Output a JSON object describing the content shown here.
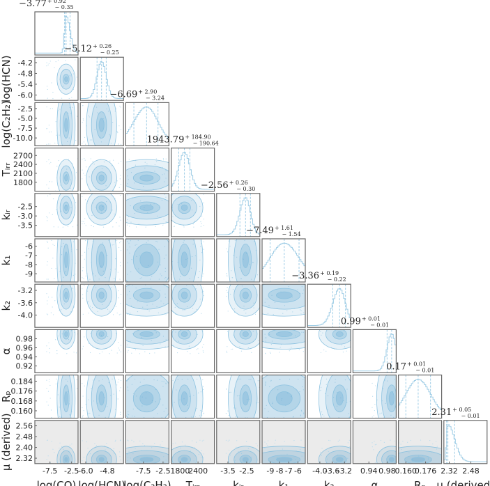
{
  "chart_data": {
    "type": "corner",
    "color": "#5ba3cf",
    "parameters": [
      {
        "label": "log(CO)",
        "median": -3.77,
        "plus": 0.92,
        "minus": 0.35,
        "title_median": "−3.77",
        "title_plus": "+ 0.92",
        "title_minus": "− 0.35",
        "range": [
          -11,
          -1
        ],
        "ticks": [
          -7.5,
          -2.5
        ],
        "tick_labels": [
          "-7.5",
          "-2.5"
        ]
      },
      {
        "label": "log(HCN)",
        "median": -5.12,
        "plus": 0.26,
        "minus": 0.25,
        "title_median": "−5.12",
        "title_plus": "+ 0.26",
        "title_minus": "− 0.25",
        "range": [
          -6.3,
          -3.9
        ],
        "ticks": [
          -6.0,
          -4.8
        ],
        "tick_labels": [
          "-6.0",
          "-4.8"
        ],
        "y_ticks": [
          -4.2,
          -4.8,
          -5.4,
          -6.0
        ],
        "y_tick_labels": [
          "-4.2",
          "-4.8",
          "-5.4",
          "-6.0"
        ]
      },
      {
        "label": "log(C₂H₂)",
        "median": -6.69,
        "plus": 2.9,
        "minus": 3.24,
        "title_median": "−6.69",
        "title_plus": "+ 2.90",
        "title_minus": "− 3.24",
        "range": [
          -12,
          -1
        ],
        "ticks": [
          -7.5,
          -2.5
        ],
        "tick_labels": [
          "-7.5",
          "-2.5"
        ],
        "y_ticks": [
          -2.5,
          -5.0,
          -7.5,
          -10.0
        ],
        "y_tick_labels": [
          "-2.5",
          "-5.0",
          "-7.5",
          "-10.0"
        ]
      },
      {
        "label": "Tᵢᵣᵣ",
        "median": 1943.79,
        "plus": 184.9,
        "minus": 190.64,
        "title_median": "1943.79",
        "title_plus": "+ 184.90",
        "title_minus": "− 190.64",
        "range": [
          1500,
          2950
        ],
        "ticks": [
          1800,
          2400
        ],
        "tick_labels": [
          "1800",
          "2400"
        ],
        "y_ticks": [
          2700,
          2400,
          2100,
          1800
        ],
        "y_tick_labels": [
          "2700",
          "2400",
          "2100",
          "1800"
        ]
      },
      {
        "label": "kᵢᵣ",
        "median": -2.56,
        "plus": 0.26,
        "minus": 0.3,
        "title_median": "−2.56",
        "title_plus": "+ 0.26",
        "title_minus": "− 0.30",
        "range": [
          -4.1,
          -1.8
        ],
        "ticks": [
          -3.5,
          -2.5
        ],
        "tick_labels": [
          "-3.5",
          "-2.5"
        ],
        "y_ticks": [
          -2.5,
          -3.0,
          -3.5
        ],
        "y_tick_labels": [
          "-2.5",
          "-3.0",
          "-3.5"
        ]
      },
      {
        "label": "k₁",
        "median": -7.49,
        "plus": 1.61,
        "minus": 1.54,
        "title_median": "−7.49",
        "title_plus": "+ 1.61",
        "title_minus": "− 1.54",
        "range": [
          -9.9,
          -5.2
        ],
        "ticks": [
          -9,
          -8,
          -7,
          -6
        ],
        "tick_labels": [
          "-9",
          "-8",
          "-7",
          "-6"
        ],
        "y_ticks": [
          -6,
          -7,
          -8,
          -9
        ],
        "y_tick_labels": [
          "-6",
          "-7",
          "-8",
          "-9"
        ]
      },
      {
        "label": "k₂",
        "median": -3.36,
        "plus": 0.19,
        "minus": 0.22,
        "title_median": "−3.36",
        "title_plus": "+ 0.19",
        "title_minus": "− 0.22",
        "range": [
          -4.4,
          -3.0
        ],
        "ticks": [
          -4.0,
          -3.6,
          -3.2
        ],
        "tick_labels": [
          "-4.0",
          "-3.6",
          "-3.2"
        ],
        "y_ticks": [
          -3.2,
          -3.6,
          -4.0
        ],
        "y_tick_labels": [
          "-3.2",
          "-3.6",
          "-4.0"
        ]
      },
      {
        "label": "α",
        "median": 0.99,
        "plus": 0.01,
        "minus": 0.01,
        "title_median": "0.99",
        "title_plus": "+ 0.01",
        "title_minus": "− 0.01",
        "range": [
          0.905,
          1.0
        ],
        "ticks": [
          0.94,
          0.98
        ],
        "tick_labels": [
          "0.94",
          "0.98"
        ],
        "y_ticks": [
          0.98,
          0.96,
          0.94,
          0.92
        ],
        "y_tick_labels": [
          "0.98",
          "0.96",
          "0.94",
          "0.92"
        ]
      },
      {
        "label": "Rₚ",
        "median": 0.17,
        "plus": 0.01,
        "minus": 0.01,
        "title_median": "0.17",
        "title_plus": "+ 0.01",
        "title_minus": "− 0.01",
        "range": [
          0.154,
          0.189
        ],
        "ticks": [
          0.16,
          0.176
        ],
        "tick_labels": [
          "0.160",
          "0.176"
        ],
        "y_ticks": [
          0.184,
          0.176,
          0.168,
          0.16
        ],
        "y_tick_labels": [
          "0.184",
          "0.176",
          "0.168",
          "0.160"
        ]
      },
      {
        "label": "μ (derived)",
        "median": 2.31,
        "plus": 0.05,
        "minus": 0.01,
        "title_median": "2.31",
        "title_plus": "+ 0.05",
        "title_minus": "− 0.01",
        "range": [
          2.28,
          2.6
        ],
        "ticks": [
          2.32,
          2.48
        ],
        "tick_labels": [
          "2.32",
          "2.48"
        ],
        "y_ticks": [
          2.56,
          2.48,
          2.4,
          2.32
        ],
        "y_tick_labels": [
          "2.56",
          "2.48",
          "2.40",
          "2.32"
        ]
      }
    ]
  }
}
